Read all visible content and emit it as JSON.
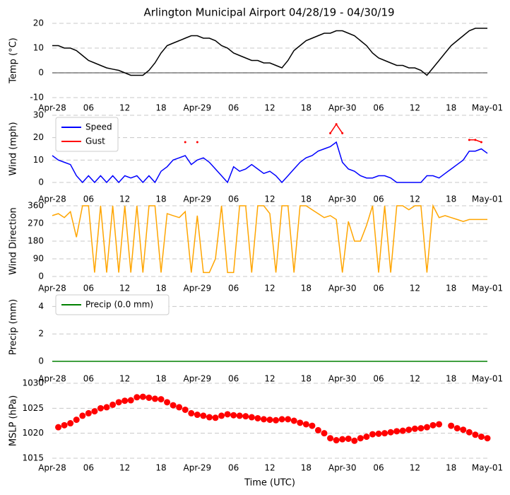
{
  "chart_data": [
    {
      "type": "line",
      "title": "Arlington Municipal Airport 04/28/19 - 04/30/19",
      "ylabel": "Temp (°C)",
      "x": [
        0,
        1,
        2,
        3,
        4,
        5,
        6,
        7,
        8,
        9,
        10,
        11,
        12,
        13,
        14,
        15,
        16,
        17,
        18,
        19,
        20,
        21,
        22,
        23,
        24,
        25,
        26,
        27,
        28,
        29,
        30,
        31,
        32,
        33,
        34,
        35,
        36,
        37,
        38,
        39,
        40,
        41,
        42,
        43,
        44,
        45,
        46,
        47,
        48,
        49,
        50,
        51,
        52,
        53,
        54,
        55,
        56,
        57,
        58,
        59,
        60,
        61,
        62,
        63,
        64,
        65,
        66,
        67,
        68,
        69,
        70,
        71,
        72
      ],
      "values": [
        11,
        11,
        10,
        10,
        9,
        7,
        5,
        4,
        3,
        2,
        1.5,
        1,
        0,
        -1,
        -1,
        -1,
        1,
        4,
        8,
        11,
        12,
        13,
        14,
        15,
        15,
        14,
        14,
        13,
        11,
        10,
        8,
        7,
        6,
        5,
        5,
        4,
        4,
        3,
        2,
        5,
        9,
        11,
        13,
        14,
        15,
        16,
        16,
        17,
        17,
        16,
        15,
        13,
        11,
        8,
        6,
        5,
        4,
        3,
        3,
        2,
        2,
        1,
        -1,
        2,
        5,
        8,
        11,
        13,
        15,
        17,
        18,
        18,
        18
      ],
      "color": "#000000",
      "zero_line": true,
      "xlim": [
        0,
        72
      ],
      "xticks": [
        {
          "value": 0,
          "label": "Apr-28"
        },
        {
          "value": 6,
          "label": "06"
        },
        {
          "value": 12,
          "label": "12"
        },
        {
          "value": 18,
          "label": "18"
        },
        {
          "value": 24,
          "label": "Apr-29"
        },
        {
          "value": 30,
          "label": "06"
        },
        {
          "value": 36,
          "label": "12"
        },
        {
          "value": 42,
          "label": "18"
        },
        {
          "value": 48,
          "label": "Apr-30"
        },
        {
          "value": 54,
          "label": "06"
        },
        {
          "value": 60,
          "label": "12"
        },
        {
          "value": 66,
          "label": "18"
        },
        {
          "value": 72,
          "label": "May-01"
        }
      ],
      "ylim": [
        -10,
        20
      ],
      "yticks": [
        -10,
        0,
        10,
        20
      ],
      "grid": true
    },
    {
      "type": "line",
      "ylabel": "Wind (mph)",
      "x": [
        0,
        1,
        2,
        3,
        4,
        5,
        6,
        7,
        8,
        9,
        10,
        11,
        12,
        13,
        14,
        15,
        16,
        17,
        18,
        19,
        20,
        21,
        22,
        23,
        24,
        25,
        26,
        27,
        28,
        29,
        30,
        31,
        32,
        33,
        34,
        35,
        36,
        37,
        38,
        39,
        40,
        41,
        42,
        43,
        44,
        45,
        46,
        47,
        48,
        49,
        50,
        51,
        52,
        53,
        54,
        55,
        56,
        57,
        58,
        59,
        60,
        61,
        62,
        63,
        64,
        65,
        66,
        67,
        68,
        69,
        70,
        71,
        72
      ],
      "series": [
        {
          "name": "Speed",
          "color": "#0000ff",
          "values": [
            12,
            10,
            9,
            8,
            3,
            0,
            3,
            0,
            3,
            0,
            3,
            0,
            3,
            2,
            3,
            0,
            3,
            0,
            5,
            7,
            10,
            11,
            12,
            8,
            10,
            11,
            9,
            6,
            3,
            0,
            7,
            5,
            6,
            8,
            6,
            4,
            5,
            3,
            0,
            3,
            6,
            9,
            11,
            12,
            14,
            15,
            16,
            18,
            9,
            6,
            5,
            3,
            2,
            2,
            3,
            3,
            2,
            0,
            0,
            0,
            0,
            0,
            3,
            3,
            2,
            4,
            6,
            8,
            10,
            14,
            14,
            15,
            13
          ]
        },
        {
          "name": "Gust",
          "color": "#ff0000",
          "marker": true,
          "values": [
            null,
            null,
            null,
            null,
            null,
            null,
            null,
            null,
            null,
            null,
            null,
            null,
            null,
            null,
            null,
            null,
            null,
            null,
            null,
            null,
            null,
            null,
            18,
            null,
            18,
            null,
            null,
            null,
            null,
            null,
            null,
            null,
            null,
            null,
            null,
            null,
            null,
            null,
            null,
            null,
            null,
            null,
            null,
            null,
            null,
            null,
            22,
            26,
            22,
            null,
            null,
            null,
            null,
            null,
            null,
            null,
            null,
            null,
            null,
            null,
            null,
            null,
            null,
            null,
            null,
            null,
            null,
            null,
            null,
            19,
            19,
            18,
            null
          ]
        }
      ],
      "legend": "upper left",
      "xlim": [
        0,
        72
      ],
      "xticks": [
        {
          "value": 0,
          "label": "Apr-28"
        },
        {
          "value": 6,
          "label": "06"
        },
        {
          "value": 12,
          "label": "12"
        },
        {
          "value": 18,
          "label": "18"
        },
        {
          "value": 24,
          "label": "Apr-29"
        },
        {
          "value": 30,
          "label": "06"
        },
        {
          "value": 36,
          "label": "12"
        },
        {
          "value": 42,
          "label": "18"
        },
        {
          "value": 48,
          "label": "Apr-30"
        },
        {
          "value": 54,
          "label": "06"
        },
        {
          "value": 60,
          "label": "12"
        },
        {
          "value": 66,
          "label": "18"
        },
        {
          "value": 72,
          "label": "May-01"
        }
      ],
      "ylim": [
        0,
        30
      ],
      "yticks": [
        0,
        10,
        20,
        30
      ],
      "grid": true
    },
    {
      "type": "line",
      "ylabel": "Wind Direction",
      "x": [
        0,
        1,
        2,
        3,
        4,
        5,
        6,
        7,
        8,
        9,
        10,
        11,
        12,
        13,
        14,
        15,
        16,
        17,
        18,
        19,
        20,
        21,
        22,
        23,
        24,
        25,
        26,
        27,
        28,
        29,
        30,
        31,
        32,
        33,
        34,
        35,
        36,
        37,
        38,
        39,
        40,
        41,
        42,
        43,
        44,
        45,
        46,
        47,
        48,
        49,
        50,
        51,
        52,
        53,
        54,
        55,
        56,
        57,
        58,
        59,
        60,
        61,
        62,
        63,
        64,
        65,
        66,
        67,
        68,
        69,
        70,
        71,
        72
      ],
      "values": [
        310,
        320,
        300,
        330,
        200,
        360,
        360,
        20,
        360,
        20,
        360,
        20,
        360,
        20,
        360,
        20,
        360,
        360,
        20,
        320,
        310,
        300,
        330,
        20,
        310,
        20,
        20,
        90,
        360,
        20,
        20,
        360,
        360,
        20,
        360,
        360,
        320,
        20,
        360,
        360,
        20,
        360,
        360,
        340,
        320,
        300,
        310,
        290,
        20,
        280,
        180,
        180,
        260,
        360,
        20,
        360,
        20,
        360,
        360,
        340,
        360,
        360,
        20,
        360,
        300,
        310,
        300,
        290,
        280,
        290,
        290,
        290,
        290
      ],
      "color": "#ffa500",
      "xlim": [
        0,
        72
      ],
      "xticks": [
        {
          "value": 0,
          "label": "Apr-28"
        },
        {
          "value": 6,
          "label": "06"
        },
        {
          "value": 12,
          "label": "12"
        },
        {
          "value": 18,
          "label": "18"
        },
        {
          "value": 24,
          "label": "Apr-29"
        },
        {
          "value": 30,
          "label": "06"
        },
        {
          "value": 36,
          "label": "12"
        },
        {
          "value": 42,
          "label": "18"
        },
        {
          "value": 48,
          "label": "Apr-30"
        },
        {
          "value": 54,
          "label": "06"
        },
        {
          "value": 60,
          "label": "12"
        },
        {
          "value": 66,
          "label": "18"
        },
        {
          "value": 72,
          "label": "May-01"
        }
      ],
      "ylim": [
        0,
        360
      ],
      "yticks": [
        0,
        90,
        180,
        270,
        360
      ],
      "grid": true
    },
    {
      "type": "line",
      "ylabel": "Precip (mm)",
      "x": [
        0,
        3,
        6,
        9,
        12,
        15,
        18,
        21,
        24,
        27,
        30,
        33,
        36,
        39,
        42,
        45,
        48,
        51,
        54,
        57,
        60,
        63,
        66,
        69,
        72
      ],
      "series": [
        {
          "name": "Precip (0.0 mm)",
          "color": "#008000",
          "values": [
            0,
            0,
            0,
            0,
            0,
            0,
            0,
            0,
            0,
            0,
            0,
            0,
            0,
            0,
            0,
            0,
            0,
            0,
            0,
            0,
            0,
            0,
            0,
            0,
            0
          ]
        }
      ],
      "legend": "upper left",
      "xlim": [
        0,
        72
      ],
      "xticks": [
        {
          "value": 0,
          "label": "Apr-28"
        },
        {
          "value": 6,
          "label": "06"
        },
        {
          "value": 12,
          "label": "12"
        },
        {
          "value": 18,
          "label": "18"
        },
        {
          "value": 24,
          "label": "Apr-29"
        },
        {
          "value": 30,
          "label": "06"
        },
        {
          "value": 36,
          "label": "12"
        },
        {
          "value": 42,
          "label": "18"
        },
        {
          "value": 48,
          "label": "Apr-30"
        },
        {
          "value": 54,
          "label": "06"
        },
        {
          "value": 60,
          "label": "12"
        },
        {
          "value": 66,
          "label": "18"
        },
        {
          "value": 72,
          "label": "May-01"
        }
      ],
      "ylim": [
        0,
        5
      ],
      "yticks": [
        0,
        2,
        4
      ],
      "grid": true
    },
    {
      "type": "scatter",
      "ylabel": "MSLP (hPa)",
      "xlabel": "Time (UTC)",
      "x": [
        1,
        2,
        3,
        4,
        5,
        6,
        7,
        8,
        9,
        10,
        11,
        12,
        13,
        14,
        15,
        16,
        17,
        18,
        19,
        20,
        21,
        22,
        23,
        24,
        25,
        26,
        27,
        28,
        29,
        30,
        31,
        32,
        33,
        34,
        35,
        36,
        37,
        38,
        39,
        40,
        41,
        42,
        43,
        44,
        45,
        46,
        47,
        48,
        49,
        50,
        51,
        52,
        53,
        54,
        55,
        56,
        57,
        58,
        59,
        60,
        61,
        62,
        63,
        64,
        66,
        67,
        68,
        69,
        70,
        71,
        72
      ],
      "values": [
        1021.2,
        1021.6,
        1022,
        1022.7,
        1023.5,
        1024,
        1024.4,
        1025,
        1025.2,
        1025.7,
        1026.2,
        1026.5,
        1026.6,
        1027.2,
        1027.3,
        1027.1,
        1026.9,
        1026.8,
        1026.2,
        1025.6,
        1025.2,
        1024.7,
        1024,
        1023.7,
        1023.5,
        1023.2,
        1023.1,
        1023.5,
        1023.8,
        1023.6,
        1023.5,
        1023.4,
        1023.2,
        1023,
        1022.8,
        1022.7,
        1022.6,
        1022.8,
        1022.8,
        1022.5,
        1022.1,
        1021.8,
        1021.5,
        1020.6,
        1020,
        1019,
        1018.6,
        1018.8,
        1018.9,
        1018.5,
        1019,
        1019.3,
        1019.8,
        1019.9,
        1020,
        1020.2,
        1020.4,
        1020.5,
        1020.7,
        1020.9,
        1021,
        1021.2,
        1021.6,
        1021.8,
        1021.5,
        1021,
        1020.7,
        1020.2,
        1019.7,
        1019.3,
        1019
      ],
      "color": "#ff0000",
      "xlim": [
        0,
        72
      ],
      "xticks": [
        {
          "value": 0,
          "label": "Apr-28"
        },
        {
          "value": 6,
          "label": "06"
        },
        {
          "value": 12,
          "label": "12"
        },
        {
          "value": 18,
          "label": "18"
        },
        {
          "value": 24,
          "label": "Apr-29"
        },
        {
          "value": 30,
          "label": "06"
        },
        {
          "value": 36,
          "label": "12"
        },
        {
          "value": 42,
          "label": "18"
        },
        {
          "value": 48,
          "label": "Apr-30"
        },
        {
          "value": 54,
          "label": "06"
        },
        {
          "value": 60,
          "label": "12"
        },
        {
          "value": 66,
          "label": "18"
        },
        {
          "value": 72,
          "label": "May-01"
        }
      ],
      "ylim": [
        1015,
        1030
      ],
      "yticks": [
        1015,
        1020,
        1025,
        1030
      ],
      "grid": true
    }
  ]
}
